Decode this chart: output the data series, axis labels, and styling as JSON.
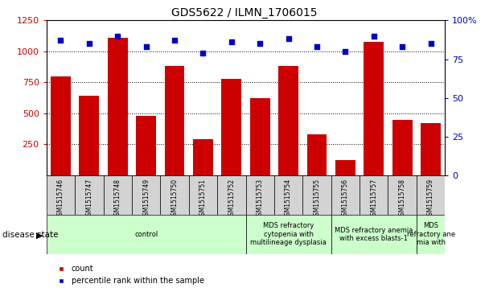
{
  "title": "GDS5622 / ILMN_1706015",
  "samples": [
    "GSM1515746",
    "GSM1515747",
    "GSM1515748",
    "GSM1515749",
    "GSM1515750",
    "GSM1515751",
    "GSM1515752",
    "GSM1515753",
    "GSM1515754",
    "GSM1515755",
    "GSM1515756",
    "GSM1515757",
    "GSM1515758",
    "GSM1515759"
  ],
  "counts": [
    800,
    640,
    1110,
    480,
    880,
    290,
    780,
    620,
    885,
    330,
    120,
    1075,
    450,
    420
  ],
  "percentile_ranks": [
    87,
    85,
    90,
    83,
    87,
    79,
    86,
    85,
    88,
    83,
    80,
    90,
    83,
    85
  ],
  "ylim_left": [
    0,
    1250
  ],
  "ylim_right": [
    0,
    100
  ],
  "yticks_left": [
    250,
    500,
    750,
    1000,
    1250
  ],
  "yticks_right": [
    0,
    25,
    50,
    75,
    100
  ],
  "bar_color": "#cc0000",
  "scatter_color": "#0000cc",
  "grid_color": "#000000",
  "disease_groups": [
    {
      "label": "control",
      "start": 0,
      "end": 7,
      "color": "#ccffcc"
    },
    {
      "label": "MDS refractory\ncytopenia with\nmultilineage dysplasia",
      "start": 7,
      "end": 10,
      "color": "#ccffcc"
    },
    {
      "label": "MDS refractory anemia\nwith excess blasts-1",
      "start": 10,
      "end": 13,
      "color": "#ccffcc"
    },
    {
      "label": "MDS\nrefractory ane\nmia with",
      "start": 13,
      "end": 14,
      "color": "#ccffcc"
    }
  ],
  "legend_count_label": "count",
  "legend_percentile_label": "percentile rank within the sample",
  "title_fontsize": 10,
  "axis_fontsize": 8,
  "sample_fontsize": 5.5,
  "disease_fontsize": 6,
  "legend_fontsize": 7
}
